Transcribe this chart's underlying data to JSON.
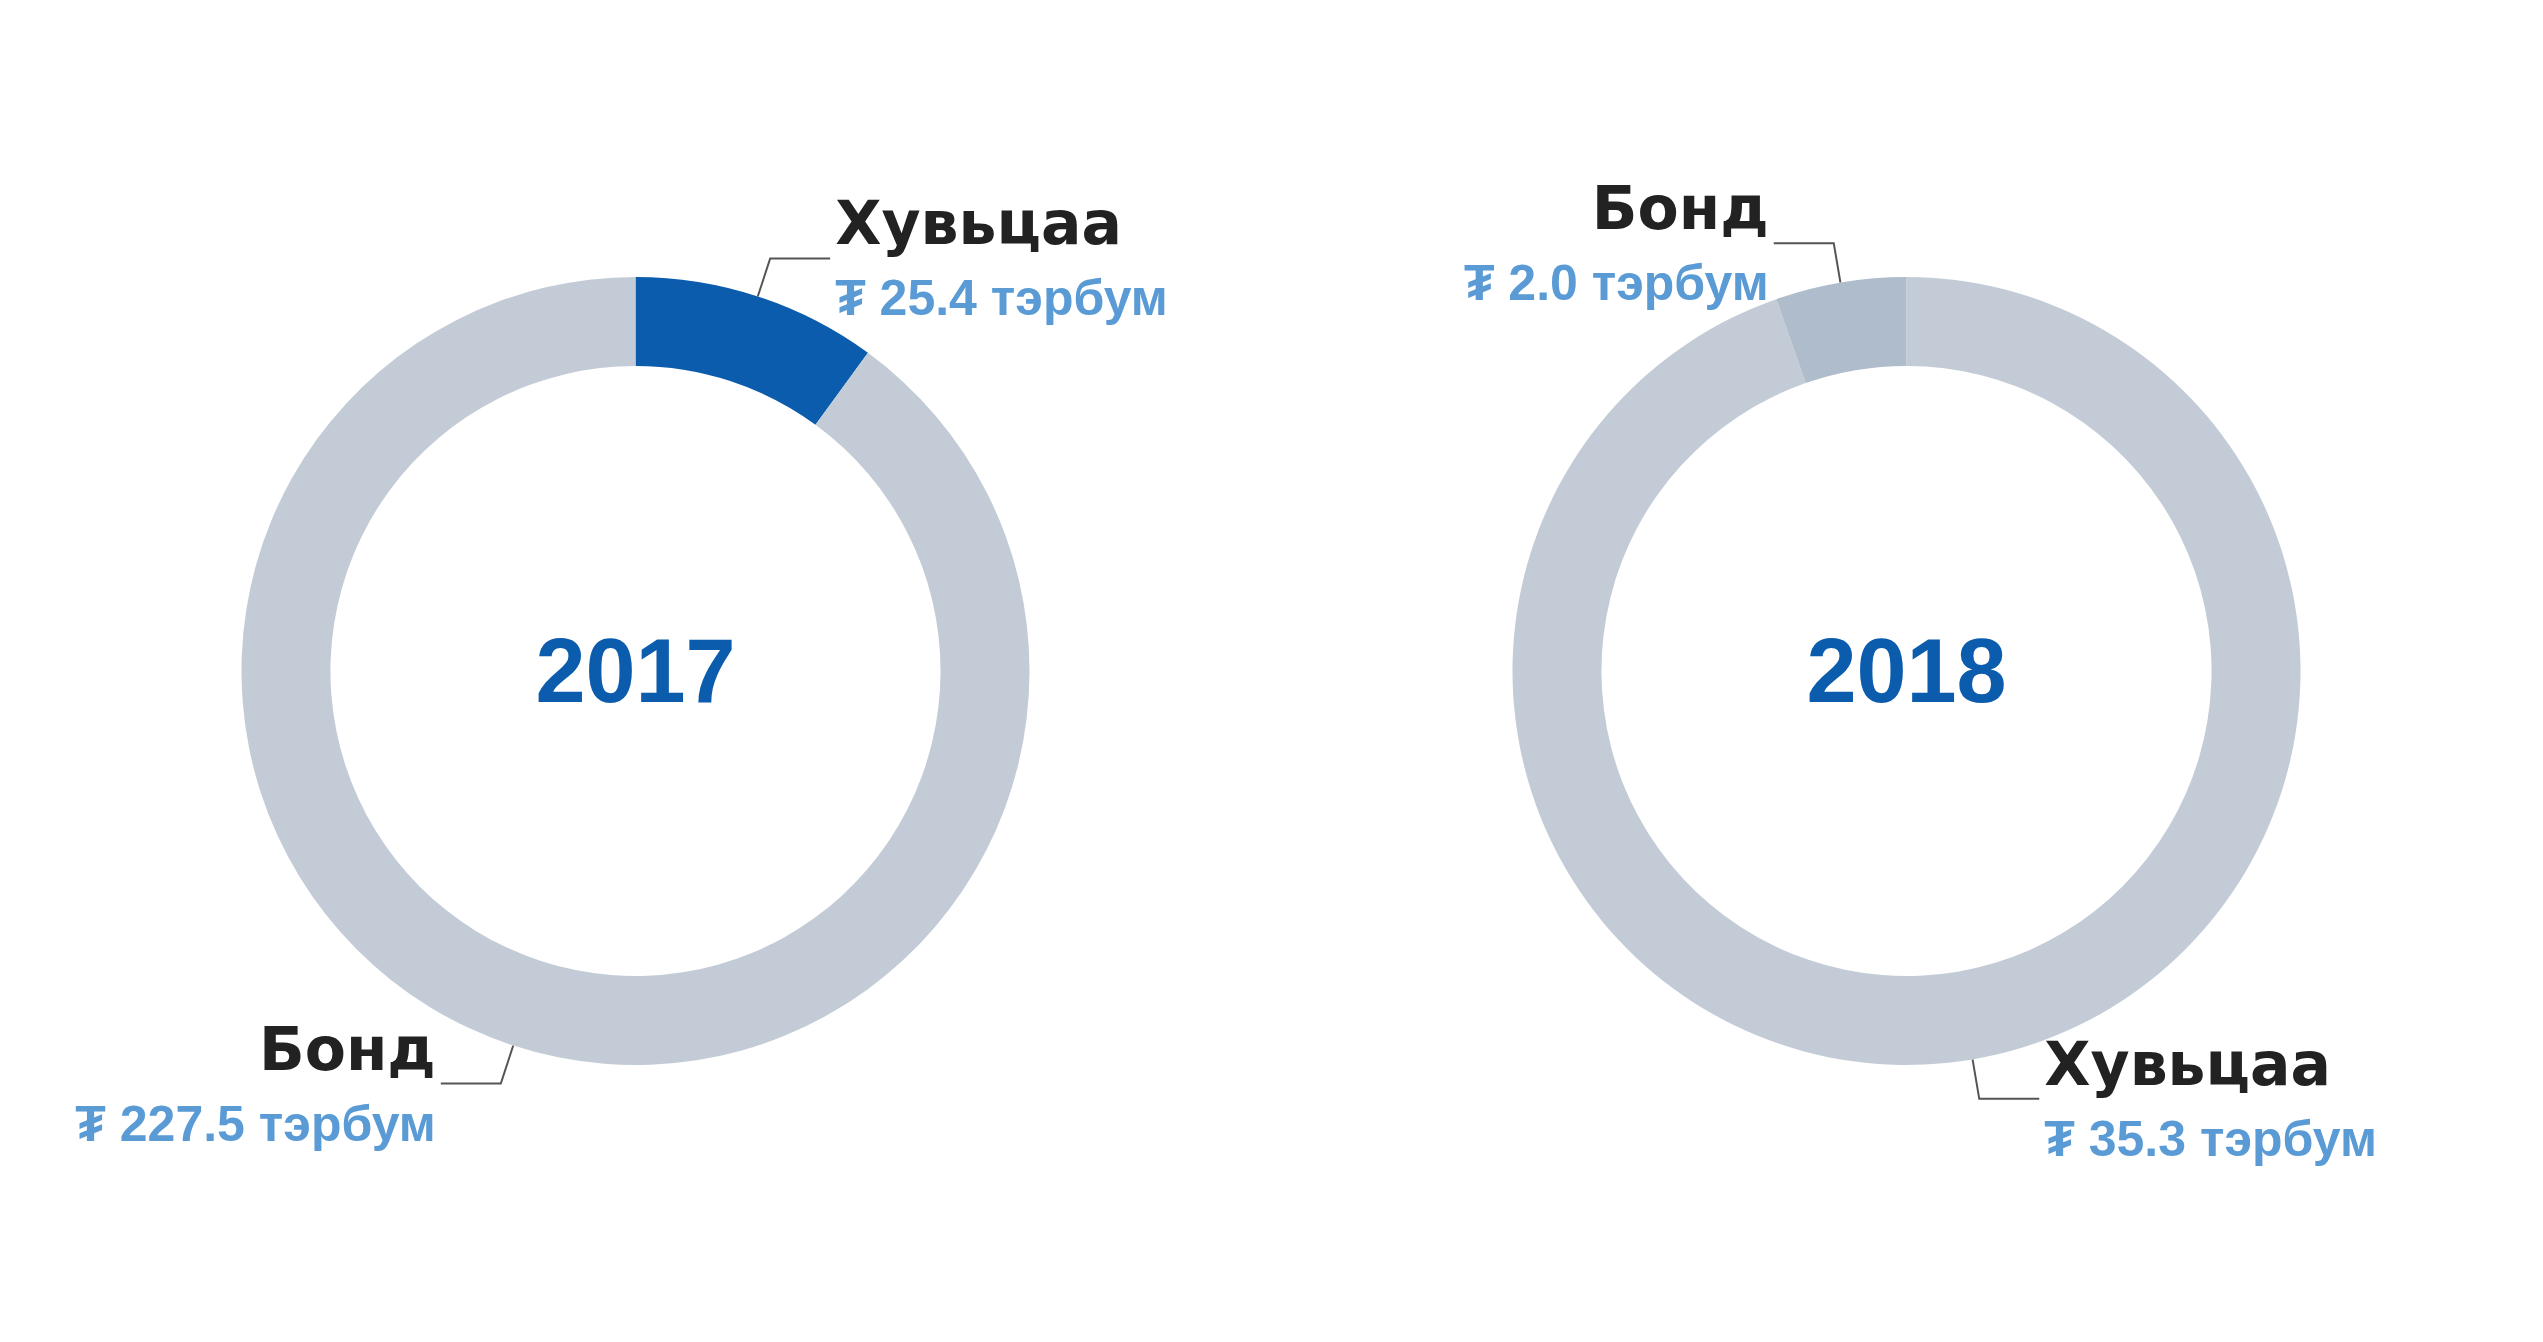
{
  "chart_data": [
    {
      "type": "donut",
      "title": "2017",
      "categories": [
        "Хувьцаа",
        "Бонд"
      ],
      "values": [
        25.4,
        227.5
      ],
      "colors": [
        "#0b5cad",
        "#c3ccd6"
      ],
      "value_labels": [
        "₮ 25.4 тэрбум",
        "₮ 227.5 тэрбум"
      ]
    },
    {
      "type": "donut",
      "title": "2018",
      "categories": [
        "Хувьцаа",
        "Бонд"
      ],
      "values": [
        35.3,
        2.0
      ],
      "colors": [
        "#c3ccd6",
        "#aebccb"
      ],
      "value_labels": [
        "₮ 35.3 тэрбум",
        "₮ 2.0 тэрбум"
      ]
    }
  ]
}
